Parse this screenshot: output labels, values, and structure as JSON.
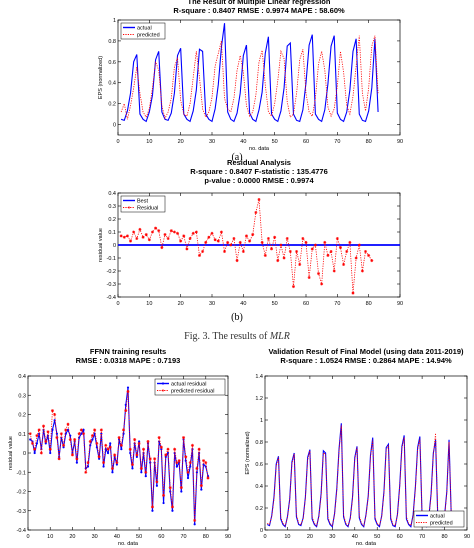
{
  "captions": {
    "a": "(a)",
    "b": "(b)",
    "figure_prefix": "Fig. 3.   The results of ",
    "figure_emph": "MLR"
  },
  "chart_data": [
    {
      "id": "mlr",
      "type": "line",
      "title": "The Result of Multiple Linear regression",
      "subtitle": "R-square : 0.8407   RMSE : 0.9974   MAPE : 58.60%",
      "xlabel": "no. data",
      "ylabel": "EPS (normalized)",
      "xlim": [
        0,
        90
      ],
      "ylim": [
        -0.1,
        1
      ],
      "xticks": [
        0,
        10,
        20,
        30,
        40,
        50,
        60,
        70,
        80,
        90
      ],
      "yticks": [
        0,
        0.2,
        0.4,
        0.6,
        0.8,
        1
      ],
      "grid": false,
      "legend_position": "top-left",
      "series": [
        {
          "name": "actual",
          "color": "#0000ff",
          "dash": "solid",
          "marker": "none",
          "values": [
            0.05,
            0.04,
            0.13,
            0.3,
            0.6,
            0.67,
            0.1,
            0.05,
            0.03,
            0.12,
            0.28,
            0.62,
            0.7,
            0.12,
            0.05,
            0.04,
            0.11,
            0.3,
            0.66,
            0.73,
            0.1,
            0.05,
            0.03,
            0.13,
            0.33,
            0.72,
            0.7,
            0.1,
            0.05,
            0.03,
            0.15,
            0.38,
            0.74,
            0.97,
            0.12,
            0.05,
            0.03,
            0.11,
            0.3,
            0.66,
            0.76,
            0.11,
            0.05,
            0.03,
            0.14,
            0.31,
            0.68,
            0.84,
            0.1,
            0.05,
            0.03,
            0.13,
            0.35,
            0.75,
            0.78,
            0.1,
            0.04,
            0.03,
            0.14,
            0.4,
            0.76,
            0.86,
            0.1,
            0.05,
            0.03,
            0.14,
            0.39,
            0.75,
            0.85,
            0.11,
            0.05,
            0.03,
            0.12,
            0.33,
            0.7,
            0.82,
            0.1,
            0.04,
            0.03,
            0.13,
            0.35,
            0.82,
            0.12
          ]
        },
        {
          "name": "predicted",
          "color": "#ff0000",
          "dash": "dotted",
          "marker": "none",
          "values": [
            0.12,
            0.2,
            0.05,
            0.18,
            0.35,
            0.55,
            0.3,
            0.12,
            0.07,
            0.15,
            0.35,
            0.6,
            0.52,
            0.18,
            0.06,
            0.12,
            0.25,
            0.55,
            0.64,
            0.23,
            0.1,
            0.08,
            0.2,
            0.45,
            0.7,
            0.45,
            0.15,
            0.07,
            0.12,
            0.26,
            0.56,
            0.68,
            0.8,
            0.25,
            0.15,
            0.12,
            0.25,
            0.52,
            0.66,
            0.5,
            0.18,
            0.08,
            0.12,
            0.28,
            0.6,
            0.71,
            0.38,
            0.12,
            0.08,
            0.2,
            0.42,
            0.7,
            0.63,
            0.22,
            0.07,
            0.1,
            0.3,
            0.62,
            0.72,
            0.3,
            0.12,
            0.08,
            0.25,
            0.58,
            0.7,
            0.52,
            0.17,
            0.08,
            0.15,
            0.37,
            0.7,
            0.5,
            0.18,
            0.1,
            0.27,
            0.56,
            0.85,
            0.3,
            0.13,
            0.35,
            0.75,
            0.85,
            0.3
          ]
        }
      ]
    },
    {
      "id": "residual",
      "type": "line",
      "title": "Residual Analysis",
      "subtitle": "R-square : 0.8407   F-statistic : 135.4776",
      "subtitle2": "p-value : 0.0000    RMSE : 0.9974",
      "xlabel": "",
      "ylabel": "residual value",
      "xlim": [
        0,
        90
      ],
      "ylim": [
        -0.4,
        0.4
      ],
      "xticks": [
        0,
        10,
        20,
        30,
        40,
        50,
        60,
        70,
        80,
        90
      ],
      "yticks": [
        -0.4,
        -0.3,
        -0.2,
        -0.1,
        0,
        0.1,
        0.2,
        0.3,
        0.4
      ],
      "grid": false,
      "legend_position": "top-left",
      "best_value": 0,
      "series": [
        {
          "name": "Best",
          "color": "#0000ff",
          "dash": "solid",
          "marker": "none",
          "values": []
        },
        {
          "name": "Residual",
          "color": "#ff0000",
          "dash": "dotted",
          "marker": "star",
          "values": [
            0.07,
            0.06,
            0.07,
            0.03,
            0.1,
            0.05,
            0.12,
            0.06,
            0.08,
            0.04,
            0.1,
            0.13,
            0.11,
            -0.02,
            0.08,
            0.05,
            0.11,
            0.1,
            0.09,
            0.03,
            0.07,
            -0.03,
            0.05,
            0.09,
            0.1,
            -0.08,
            -0.05,
            0.02,
            0.06,
            0.09,
            0.04,
            0.03,
            0.1,
            -0.05,
            0.02,
            0.0,
            0.05,
            -0.12,
            0.02,
            -0.05,
            0.07,
            0.03,
            0.08,
            0.25,
            0.35,
            0.02,
            -0.08,
            0.05,
            -0.03,
            0.06,
            -0.12,
            0.0,
            -0.1,
            0.05,
            -0.05,
            -0.32,
            -0.05,
            -0.15,
            0.05,
            0.02,
            -0.25,
            -0.03,
            0.0,
            -0.22,
            -0.3,
            0.02,
            -0.08,
            -0.05,
            -0.2,
            0.05,
            -0.02,
            -0.15,
            -0.05,
            0.02,
            -0.37,
            -0.1,
            0.0,
            -0.2,
            -0.05,
            -0.08,
            -0.12
          ]
        }
      ]
    },
    {
      "id": "ffnn",
      "type": "line",
      "title": "FFNN training results",
      "subtitle": "RMSE : 0.0318   MAPE : 0.7193",
      "xlabel": "no. data",
      "ylabel": "residual value",
      "xlim": [
        0,
        90
      ],
      "ylim": [
        -0.4,
        0.4
      ],
      "xticks": [
        0,
        10,
        20,
        30,
        40,
        50,
        60,
        70,
        80,
        90
      ],
      "yticks": [
        -0.4,
        -0.3,
        -0.2,
        -0.1,
        0,
        0.1,
        0.2,
        0.3,
        0.4
      ],
      "grid": false,
      "legend_position": "top-right",
      "series": [
        {
          "name": "actual residual",
          "color": "#0000ff",
          "dash": "solid",
          "marker": "dot",
          "values": [
            0.07,
            0.06,
            0.0,
            0.05,
            0.1,
            0.02,
            0.12,
            0.05,
            0.09,
            0.0,
            0.12,
            0.17,
            0.1,
            -0.02,
            0.08,
            0.03,
            0.1,
            0.12,
            0.09,
            0.0,
            0.06,
            -0.05,
            0.08,
            0.1,
            0.12,
            -0.08,
            -0.07,
            0.04,
            0.07,
            0.1,
            0.03,
            -0.03,
            0.1,
            -0.07,
            0.02,
            0.0,
            0.05,
            -0.1,
            -0.02,
            -0.06,
            0.07,
            0.02,
            0.1,
            0.25,
            0.34,
            0.0,
            -0.08,
            0.05,
            -0.02,
            0.06,
            -0.1,
            0.0,
            -0.12,
            0.05,
            -0.05,
            -0.3,
            -0.05,
            -0.17,
            0.06,
            0.02,
            -0.26,
            -0.02,
            0.0,
            -0.2,
            -0.3,
            0.0,
            -0.07,
            -0.05,
            -0.2,
            0.07,
            -0.04,
            -0.13,
            -0.07,
            0.02,
            -0.37,
            -0.1,
            0.0,
            -0.19,
            -0.06,
            -0.07,
            -0.12
          ]
        },
        {
          "name": "predicted residual",
          "color": "#ff0000",
          "dash": "dotted",
          "marker": "star",
          "values": [
            0.1,
            0.05,
            0.02,
            0.09,
            0.12,
            0.0,
            0.14,
            0.06,
            0.11,
            0.02,
            0.22,
            0.2,
            0.08,
            -0.03,
            0.1,
            0.04,
            0.12,
            0.15,
            0.07,
            -0.01,
            0.07,
            -0.03,
            0.1,
            0.12,
            0.1,
            -0.1,
            -0.05,
            0.06,
            0.09,
            0.12,
            0.05,
            -0.02,
            0.12,
            -0.05,
            0.04,
            0.02,
            0.03,
            -0.08,
            -0.01,
            -0.05,
            0.08,
            0.04,
            0.12,
            0.22,
            0.32,
            0.02,
            -0.06,
            0.07,
            -0.01,
            0.05,
            -0.08,
            0.02,
            -0.1,
            0.06,
            -0.03,
            -0.28,
            -0.03,
            -0.15,
            0.08,
            0.03,
            -0.22,
            -0.01,
            0.02,
            -0.18,
            -0.28,
            0.02,
            -0.05,
            -0.04,
            -0.18,
            0.08,
            -0.02,
            -0.1,
            -0.05,
            0.04,
            -0.35,
            -0.08,
            0.02,
            -0.17,
            -0.04,
            -0.05,
            -0.13
          ]
        }
      ]
    },
    {
      "id": "validation",
      "type": "line",
      "title": "Validation Result of Final Model (using data 2011-2019)",
      "subtitle": "R-square : 1.0524   RMSE : 0.2864   MAPE : 14.94%",
      "xlabel": "no. data",
      "ylabel": "EPS (normalized)",
      "xlim": [
        0,
        90
      ],
      "ylim": [
        0,
        1.4
      ],
      "xticks": [
        0,
        10,
        20,
        30,
        40,
        50,
        60,
        70,
        80,
        90
      ],
      "yticks": [
        0,
        0.2,
        0.4,
        0.6,
        0.8,
        1,
        1.2,
        1.4
      ],
      "grid": false,
      "legend_position": "bottom-right",
      "series": [
        {
          "name": "actual",
          "color": "#0000ff",
          "dash": "solid",
          "marker": "none",
          "values": [
            0.05,
            0.04,
            0.13,
            0.3,
            0.6,
            0.67,
            0.1,
            0.05,
            0.03,
            0.12,
            0.28,
            0.62,
            0.7,
            0.12,
            0.05,
            0.04,
            0.11,
            0.3,
            0.66,
            0.73,
            0.1,
            0.05,
            0.03,
            0.13,
            0.33,
            0.72,
            0.7,
            0.1,
            0.05,
            0.03,
            0.15,
            0.38,
            0.74,
            0.97,
            0.12,
            0.05,
            0.03,
            0.11,
            0.3,
            0.66,
            0.76,
            0.11,
            0.05,
            0.03,
            0.14,
            0.31,
            0.68,
            0.84,
            0.1,
            0.05,
            0.03,
            0.13,
            0.35,
            0.75,
            0.78,
            0.1,
            0.04,
            0.03,
            0.14,
            0.4,
            0.76,
            0.86,
            0.1,
            0.05,
            0.03,
            0.14,
            0.39,
            0.75,
            0.85,
            0.11,
            0.05,
            0.03,
            0.12,
            0.33,
            0.7,
            0.82,
            0.1,
            0.04,
            0.03,
            0.13,
            0.35,
            0.82,
            0.12
          ]
        },
        {
          "name": "predicted",
          "color": "#ff0000",
          "dash": "dotted",
          "marker": "none",
          "values": [
            0.06,
            0.05,
            0.12,
            0.28,
            0.58,
            0.66,
            0.12,
            0.06,
            0.04,
            0.11,
            0.27,
            0.6,
            0.69,
            0.14,
            0.06,
            0.05,
            0.1,
            0.29,
            0.64,
            0.72,
            0.12,
            0.06,
            0.04,
            0.12,
            0.31,
            0.7,
            0.69,
            0.12,
            0.06,
            0.04,
            0.14,
            0.36,
            0.72,
            0.95,
            0.14,
            0.06,
            0.04,
            0.1,
            0.28,
            0.64,
            0.75,
            0.13,
            0.06,
            0.04,
            0.13,
            0.3,
            0.66,
            0.82,
            0.12,
            0.06,
            0.04,
            0.12,
            0.33,
            0.73,
            0.77,
            0.12,
            0.05,
            0.04,
            0.13,
            0.38,
            0.74,
            0.84,
            0.12,
            0.06,
            0.04,
            0.13,
            0.37,
            0.73,
            0.83,
            0.13,
            0.06,
            0.04,
            0.11,
            0.31,
            0.68,
            0.88,
            0.12,
            0.05,
            0.04,
            0.12,
            0.33,
            0.8,
            0.14
          ]
        }
      ]
    }
  ]
}
